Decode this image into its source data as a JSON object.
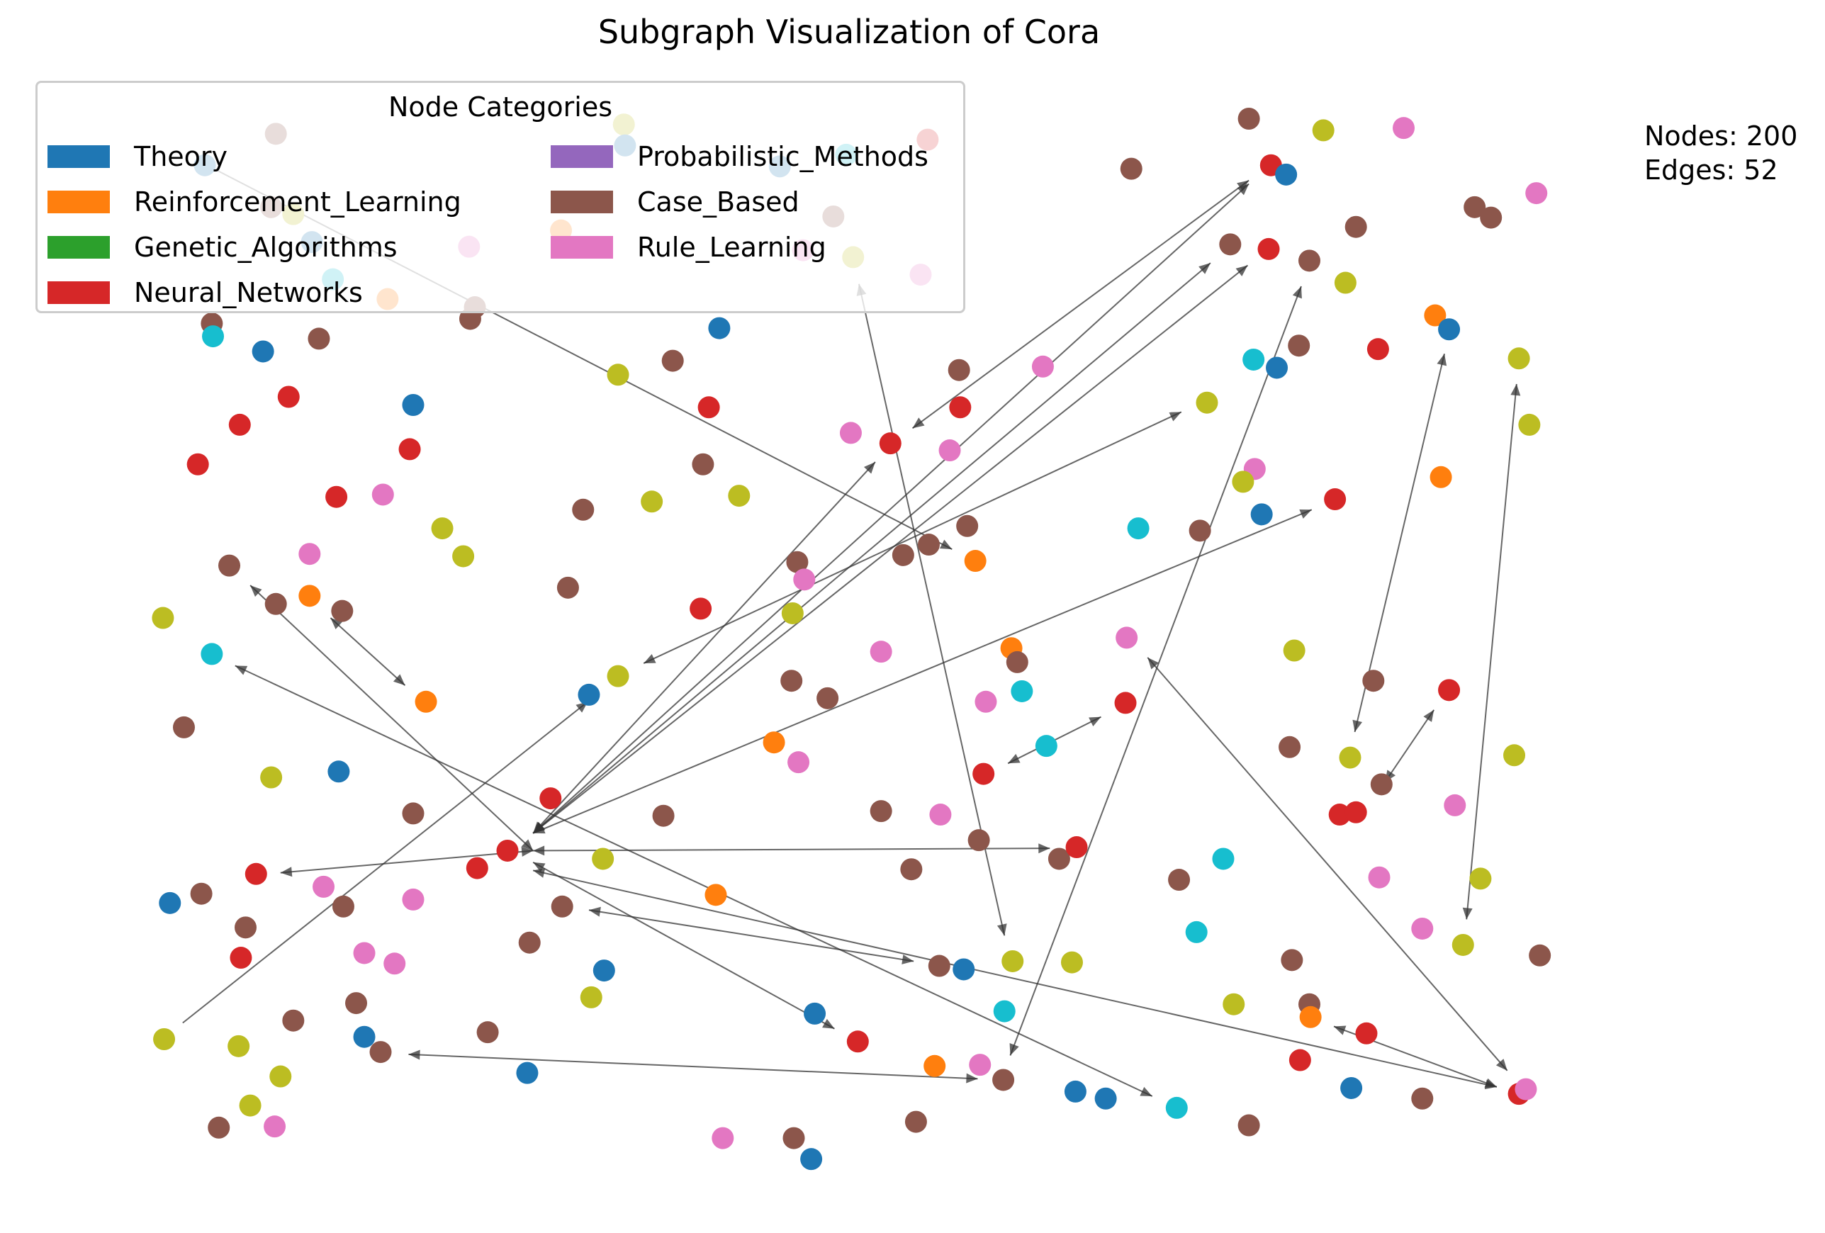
{
  "title": "Subgraph Visualization of Cora",
  "stats": {
    "nodes_label": "Nodes: 200",
    "edges_label": "Edges: 52"
  },
  "legend": {
    "title": "Node Categories",
    "items": [
      {
        "label": "Theory",
        "color": "#1f77b4"
      },
      {
        "label": "Reinforcement_Learning",
        "color": "#ff7f0e"
      },
      {
        "label": "Genetic_Algorithms",
        "color": "#2ca02c"
      },
      {
        "label": "Neural_Networks",
        "color": "#d62728"
      },
      {
        "label": "Probabilistic_Methods",
        "color": "#9467bd"
      },
      {
        "label": "Case_Based",
        "color": "#8c564b"
      },
      {
        "label": "Rule_Learning",
        "color": "#e377c2"
      }
    ]
  },
  "node_colors": {
    "theory": "#1f77b4",
    "reinforcement": "#ff7f0e",
    "neural": "#d62728",
    "case_based": "#8c564b",
    "rule": "#e377c2",
    "olive": "#bcbd22",
    "cyan": "#17becf"
  },
  "edge_color": "#333333"
}
